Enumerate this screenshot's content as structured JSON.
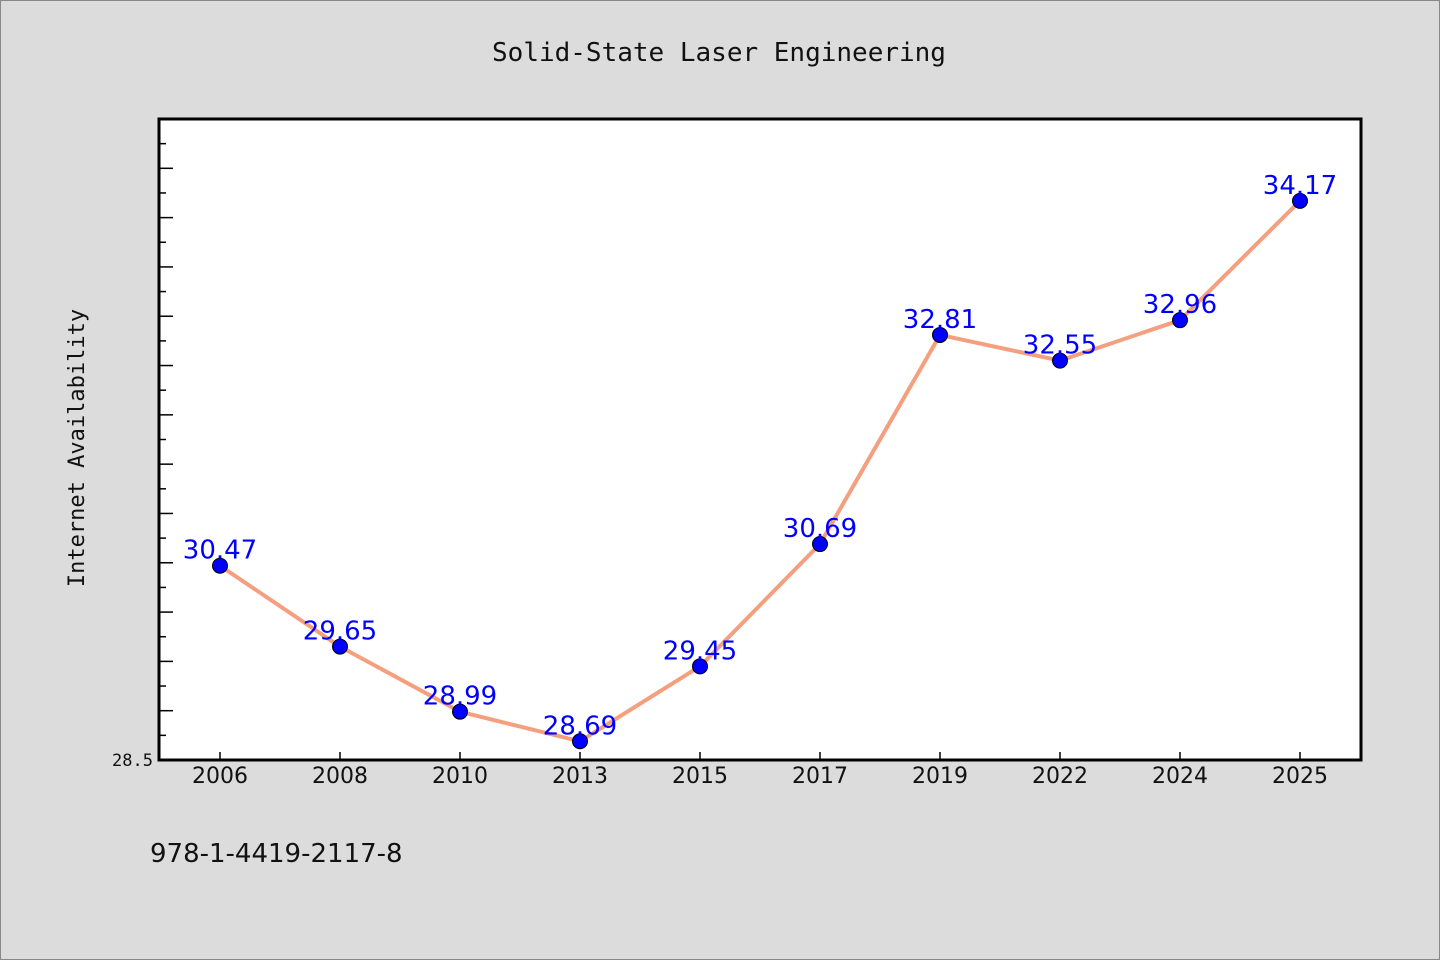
{
  "chart_data": {
    "type": "line",
    "title": "Solid-State Laser Engineering",
    "ylabel": "Internet Availability",
    "xlabel": "",
    "categories": [
      "2006",
      "2008",
      "2010",
      "2013",
      "2015",
      "2017",
      "2019",
      "2022",
      "2024",
      "2025"
    ],
    "series": [
      {
        "values": [
          30.47,
          29.65,
          28.99,
          28.69,
          29.45,
          30.69,
          32.81,
          32.55,
          32.96,
          34.17
        ],
        "line_color": "#f4a07e",
        "marker_color": "#0000ff"
      }
    ],
    "data_labels": [
      "30.47",
      "29.65",
      "28.99",
      "28.69",
      "29.45",
      "30.69",
      "32.81",
      "32.55",
      "32.96",
      "34.17"
    ],
    "ylim": [
      28.5,
      35.0
    ],
    "y_tick_labels": [
      "28.5"
    ],
    "grid": false,
    "footer_text": "978-1-4419-2117-8",
    "colors": {
      "background": "#dcdcdc",
      "plot_background": "#ffffff",
      "label_color": "#0000ff"
    }
  }
}
